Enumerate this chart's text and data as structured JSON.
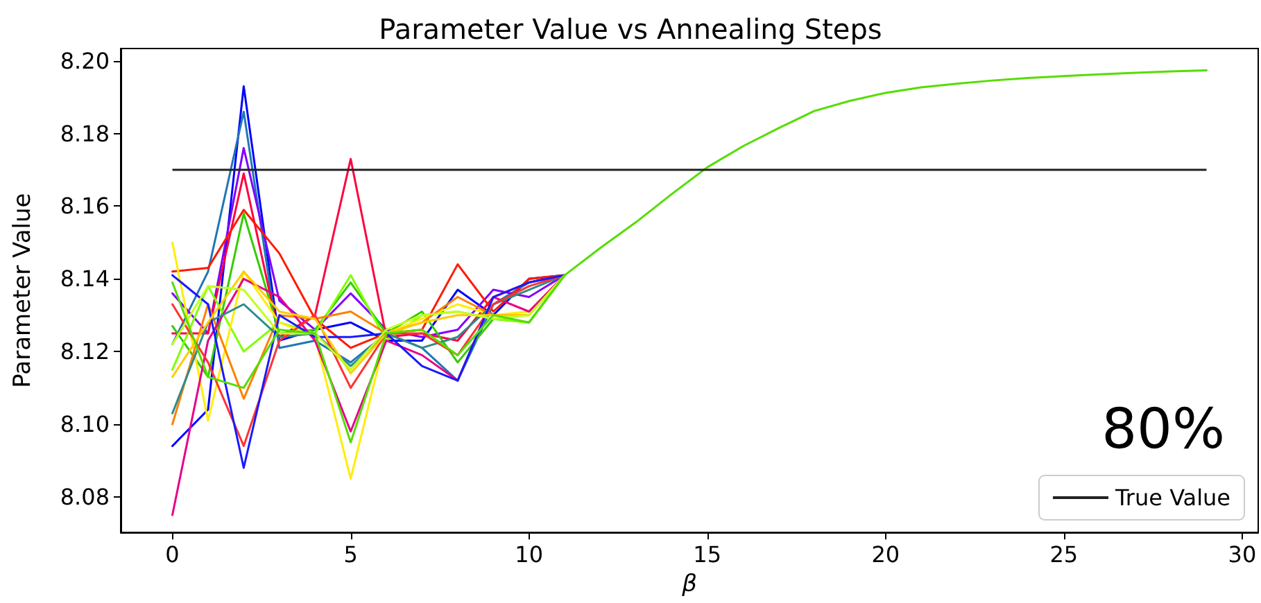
{
  "chart_data": {
    "type": "line",
    "title": "Parameter Value vs Annealing Steps",
    "xlabel": "β",
    "ylabel": "Parameter Value",
    "x": [
      0,
      1,
      2,
      3,
      4,
      5,
      6,
      7,
      8,
      9,
      10,
      11,
      12,
      13,
      14,
      15,
      16,
      17,
      18,
      19,
      20,
      21,
      22,
      23,
      24,
      25,
      26,
      27,
      28,
      29
    ],
    "xlim": [
      -1.45,
      30.45
    ],
    "xticks": [
      0,
      5,
      10,
      15,
      20,
      25,
      30
    ],
    "ylim": [
      8.0702,
      8.2034
    ],
    "yticks": [
      {
        "value": 8.08,
        "label": "8.08"
      },
      {
        "value": 8.1,
        "label": "8.10"
      },
      {
        "value": 8.12,
        "label": "8.12"
      },
      {
        "value": 8.14,
        "label": "8.14"
      },
      {
        "value": 8.16,
        "label": "8.16"
      },
      {
        "value": 8.18,
        "label": "8.18"
      },
      {
        "value": 8.2,
        "label": "8.20"
      }
    ],
    "grid": false,
    "legend": "bottom right",
    "marker": "none",
    "line_style": "solid",
    "ref_lines": [
      {
        "axis": "y",
        "value": 8.17,
        "label": "True Value",
        "color": "#222222"
      }
    ],
    "annotations": [
      "80%"
    ],
    "series": [
      {
        "color": "#0000ff",
        "values": [
          8.094,
          8.104,
          8.193,
          8.123,
          8.126,
          8.128,
          8.123,
          8.123,
          8.137,
          8.13,
          8.14,
          8.141,
          null,
          null,
          null,
          null,
          null,
          null,
          null,
          null,
          null,
          null,
          null,
          null,
          null,
          null,
          null,
          null,
          null,
          null
        ]
      },
      {
        "color": "#1f77b4",
        "values": [
          8.122,
          8.142,
          8.186,
          8.121,
          8.123,
          8.117,
          8.125,
          8.121,
          8.112,
          8.133,
          8.139,
          8.141,
          null,
          null,
          null,
          null,
          null,
          null,
          null,
          null,
          null,
          null,
          null,
          null,
          null,
          null,
          null,
          null,
          null,
          null
        ]
      },
      {
        "color": "#8000ff",
        "values": [
          8.136,
          8.125,
          8.176,
          8.134,
          8.126,
          8.136,
          8.126,
          8.124,
          8.126,
          8.137,
          8.135,
          8.141,
          null,
          null,
          null,
          null,
          null,
          null,
          null,
          null,
          null,
          null,
          null,
          null,
          null,
          null,
          null,
          null,
          null,
          null
        ]
      },
      {
        "color": "#ff0040",
        "values": [
          8.125,
          8.125,
          8.169,
          8.124,
          8.13,
          8.173,
          8.124,
          8.125,
          8.123,
          8.135,
          8.139,
          8.141,
          null,
          null,
          null,
          null,
          null,
          null,
          null,
          null,
          null,
          null,
          null,
          null,
          null,
          null,
          null,
          null,
          null,
          null
        ]
      },
      {
        "color": "#ff1a00",
        "values": [
          8.142,
          8.143,
          8.159,
          8.147,
          8.129,
          8.121,
          8.125,
          8.126,
          8.144,
          8.131,
          8.14,
          8.141,
          null,
          null,
          null,
          null,
          null,
          null,
          null,
          null,
          null,
          null,
          null,
          null,
          null,
          null,
          null,
          null,
          null,
          null
        ]
      },
      {
        "color": "#33cc00",
        "values": [
          8.127,
          8.113,
          8.158,
          8.125,
          8.126,
          8.139,
          8.125,
          8.131,
          8.117,
          8.129,
          8.128,
          8.141,
          null,
          null,
          null,
          null,
          null,
          null,
          null,
          null,
          null,
          null,
          null,
          null,
          null,
          null,
          null,
          null,
          null,
          null
        ]
      },
      {
        "color": "#80ff00",
        "values": [
          8.115,
          8.138,
          8.12,
          8.128,
          8.125,
          8.141,
          8.123,
          8.13,
          8.131,
          8.129,
          8.128,
          8.141,
          null,
          null,
          null,
          null,
          null,
          null,
          null,
          null,
          null,
          null,
          null,
          null,
          null,
          null,
          null,
          null,
          null,
          null
        ]
      },
      {
        "color": "#ffee00",
        "values": [
          8.15,
          8.101,
          8.142,
          8.128,
          8.124,
          8.085,
          8.125,
          8.129,
          8.133,
          8.13,
          8.131,
          8.141,
          null,
          null,
          null,
          null,
          null,
          null,
          null,
          null,
          null,
          null,
          null,
          null,
          null,
          null,
          null,
          null,
          null,
          null
        ]
      },
      {
        "color": "#ff8000",
        "values": [
          8.1,
          8.133,
          8.107,
          8.13,
          8.129,
          8.131,
          8.125,
          8.128,
          8.135,
          8.13,
          8.13,
          8.141,
          null,
          null,
          null,
          null,
          null,
          null,
          null,
          null,
          null,
          null,
          null,
          null,
          null,
          null,
          null,
          null,
          null,
          null
        ]
      },
      {
        "color": "#e6008a",
        "values": [
          8.075,
          8.123,
          8.14,
          8.135,
          8.123,
          8.098,
          8.123,
          8.119,
          8.112,
          8.135,
          8.131,
          8.141,
          null,
          null,
          null,
          null,
          null,
          null,
          null,
          null,
          null,
          null,
          null,
          null,
          null,
          null,
          null,
          null,
          null,
          null
        ]
      },
      {
        "color": "#2e8b8b",
        "values": [
          8.103,
          8.128,
          8.133,
          8.124,
          8.125,
          8.116,
          8.125,
          8.121,
          8.124,
          8.133,
          8.137,
          8.141,
          null,
          null,
          null,
          null,
          null,
          null,
          null,
          null,
          null,
          null,
          null,
          null,
          null,
          null,
          null,
          null,
          null,
          null
        ]
      },
      {
        "color": "#ff3333",
        "values": [
          8.133,
          8.117,
          8.094,
          8.123,
          8.13,
          8.11,
          8.125,
          8.125,
          8.119,
          8.133,
          8.138,
          8.141,
          null,
          null,
          null,
          null,
          null,
          null,
          null,
          null,
          null,
          null,
          null,
          null,
          null,
          null,
          null,
          null,
          null,
          null
        ]
      },
      {
        "color": "#1a1aff",
        "values": [
          8.141,
          8.133,
          8.088,
          8.13,
          8.124,
          8.124,
          8.125,
          8.116,
          8.112,
          8.135,
          8.139,
          8.141,
          null,
          null,
          null,
          null,
          null,
          null,
          null,
          null,
          null,
          null,
          null,
          null,
          null,
          null,
          null,
          null,
          null,
          null
        ]
      },
      {
        "color": "#ffcc00",
        "values": [
          8.113,
          8.128,
          8.142,
          8.131,
          8.129,
          8.114,
          8.125,
          8.128,
          8.13,
          8.13,
          8.13,
          8.141,
          null,
          null,
          null,
          null,
          null,
          null,
          null,
          null,
          null,
          null,
          null,
          null,
          null,
          null,
          null,
          null,
          null,
          null
        ]
      },
      {
        "color": "#c0ff20",
        "values": [
          8.122,
          8.138,
          8.137,
          8.125,
          8.125,
          8.115,
          8.126,
          8.13,
          8.131,
          8.129,
          8.13,
          8.141,
          null,
          null,
          null,
          null,
          null,
          null,
          null,
          null,
          null,
          null,
          null,
          null,
          null,
          null,
          null,
          null,
          null,
          null
        ]
      },
      {
        "color": "#55dd00",
        "values": [
          8.139,
          8.113,
          8.11,
          8.126,
          8.125,
          8.095,
          8.125,
          8.126,
          8.119,
          8.13,
          8.128,
          8.141,
          8.1485,
          8.1556,
          8.1633,
          8.1707,
          8.1765,
          8.1815,
          8.1862,
          8.189,
          8.1912,
          8.1927,
          8.1937,
          8.1946,
          8.1953,
          8.1958,
          8.1963,
          8.1967,
          8.1971,
          8.1974
        ]
      }
    ]
  }
}
